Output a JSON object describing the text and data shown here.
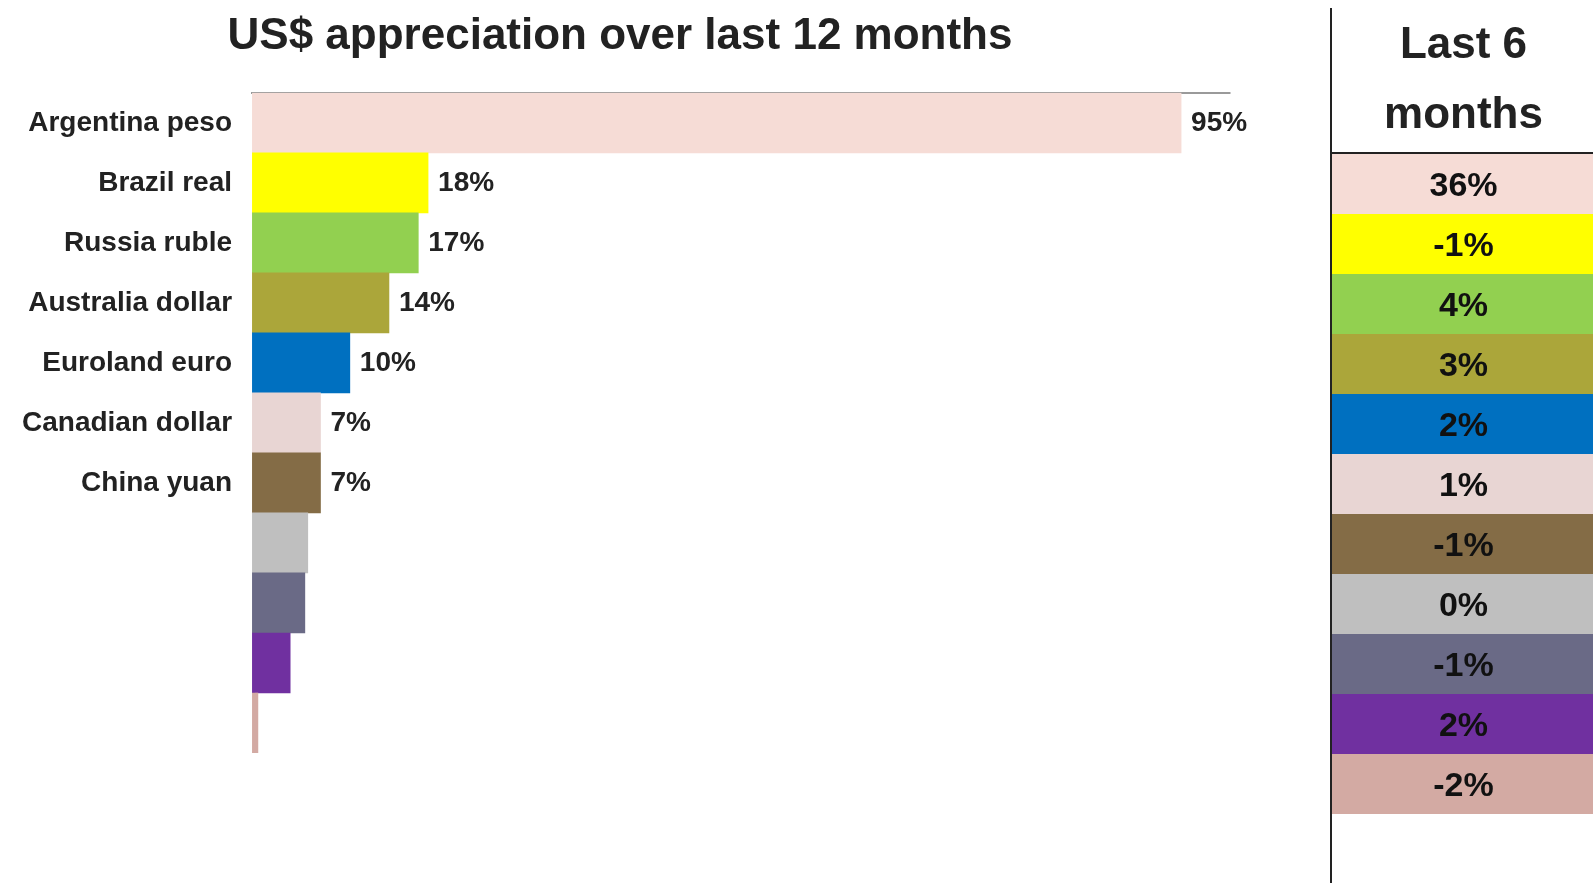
{
  "chart_data": [
    {
      "type": "bar",
      "orientation": "horizontal",
      "title": "US$ appreciation over last 12 months",
      "categories": [
        "Argentina peso",
        "Brazil real",
        "Russia ruble",
        "Australia dollar",
        "Euroland euro",
        "Canadian dollar",
        "China yuan",
        null,
        null,
        null,
        null
      ],
      "values": [
        95,
        18,
        17,
        14,
        10,
        7,
        7,
        5.7,
        5.4,
        3.9,
        0.6
      ],
      "value_labels": [
        "95%",
        "18%",
        "17%",
        "14%",
        "10%",
        "7%",
        "7%",
        null,
        null,
        null,
        null
      ],
      "colors": [
        "#f6dcd6",
        "#ffff00",
        "#92d050",
        "#aba63a",
        "#0070c0",
        "#e8d5d3",
        "#846c46",
        "#bfbfbf",
        "#6a6a86",
        "#7030a0",
        "#d3aaa3"
      ],
      "xlim": [
        0,
        100
      ],
      "tick_labels": "y"
    },
    {
      "type": "other",
      "title": "Last 6 months",
      "annotations": [
        "36%",
        "-1%",
        "4%",
        "3%",
        "2%",
        "1%",
        "-1%",
        "0%",
        "-1%",
        "2%",
        "-2%"
      ]
    }
  ]
}
